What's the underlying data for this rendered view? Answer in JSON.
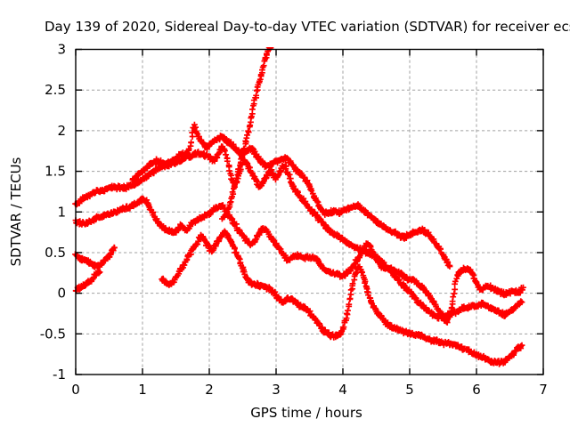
{
  "title": "Day 139 of 2020, Sidereal Day-to-day VTEC variation (SDTVAR) for receiver ecsd",
  "chart_data": {
    "type": "scatter",
    "title": "Day 139 of 2020, Sidereal Day-to-day VTEC variation (SDTVAR) for receiver ecsd",
    "xlabel": "GPS time / hours",
    "ylabel": "SDTVAR / TECUs",
    "xlim": [
      0,
      7
    ],
    "ylim": [
      -1,
      3
    ],
    "xtick_values": [
      0,
      1,
      2,
      3,
      4,
      5,
      6,
      7
    ],
    "xtick_labels": [
      "0",
      "1",
      "2",
      "3",
      "4",
      "5",
      "6",
      "7"
    ],
    "ytick_values": [
      -1,
      -0.5,
      0,
      0.5,
      1,
      1.5,
      2,
      2.5,
      3
    ],
    "ytick_labels": [
      "-1",
      "-0.5",
      "0",
      "0.5",
      "1",
      "1.5",
      "2",
      "2.5",
      "3"
    ],
    "grid": true,
    "legend": false,
    "marker": "plus",
    "marker_color": "#ff0000",
    "grid_color": "#a0a0a0",
    "axis_color": "#000000",
    "series": [
      {
        "points": [
          [
            0,
            1.1
          ],
          [
            0.12,
            1.17
          ],
          [
            0.25,
            1.23
          ],
          [
            0.4,
            1.27
          ],
          [
            0.55,
            1.3
          ],
          [
            0.7,
            1.3
          ],
          [
            0.85,
            1.33
          ],
          [
            1.0,
            1.4
          ],
          [
            1.1,
            1.46
          ],
          [
            1.2,
            1.52
          ],
          [
            1.35,
            1.57
          ],
          [
            1.5,
            1.61
          ],
          [
            1.6,
            1.64
          ],
          [
            1.68,
            1.72
          ],
          [
            1.73,
            1.88
          ],
          [
            1.77,
            2.05
          ],
          [
            1.82,
            1.95
          ],
          [
            1.88,
            1.86
          ],
          [
            1.95,
            1.8
          ],
          [
            2.03,
            1.84
          ],
          [
            2.1,
            1.88
          ],
          [
            2.18,
            1.92
          ],
          [
            2.25,
            1.88
          ],
          [
            2.33,
            1.83
          ],
          [
            2.4,
            1.77
          ],
          [
            2.48,
            1.71
          ],
          [
            2.56,
            1.75
          ],
          [
            2.63,
            1.78
          ],
          [
            2.7,
            1.7
          ],
          [
            2.78,
            1.62
          ],
          [
            2.85,
            1.56
          ],
          [
            2.92,
            1.58
          ],
          [
            3.0,
            1.62
          ],
          [
            3.08,
            1.64
          ],
          [
            3.16,
            1.66
          ],
          [
            3.22,
            1.6
          ],
          [
            3.3,
            1.52
          ],
          [
            3.4,
            1.44
          ],
          [
            3.5,
            1.32
          ],
          [
            3.58,
            1.18
          ],
          [
            3.65,
            1.06
          ],
          [
            3.7,
            1.0
          ],
          [
            3.78,
            0.99
          ],
          [
            3.87,
            1.01
          ],
          [
            3.95,
            1.0
          ],
          [
            4.05,
            1.03
          ],
          [
            4.15,
            1.06
          ],
          [
            4.24,
            1.07
          ],
          [
            4.33,
            1.0
          ],
          [
            4.42,
            0.94
          ],
          [
            4.51,
            0.87
          ],
          [
            4.64,
            0.8
          ],
          [
            4.77,
            0.74
          ],
          [
            4.91,
            0.69
          ],
          [
            5.0,
            0.72
          ],
          [
            5.08,
            0.75
          ],
          [
            5.17,
            0.77
          ],
          [
            5.27,
            0.73
          ],
          [
            5.37,
            0.63
          ],
          [
            5.47,
            0.52
          ],
          [
            5.55,
            0.4
          ],
          [
            5.6,
            0.33
          ]
        ]
      },
      {
        "points": [
          [
            0,
            0.88
          ],
          [
            0.12,
            0.86
          ],
          [
            0.25,
            0.9
          ],
          [
            0.4,
            0.95
          ],
          [
            0.55,
            0.99
          ],
          [
            0.7,
            1.03
          ],
          [
            0.85,
            1.08
          ],
          [
            0.97,
            1.14
          ],
          [
            1.03,
            1.15
          ],
          [
            1.12,
            1.03
          ],
          [
            1.22,
            0.88
          ],
          [
            1.32,
            0.8
          ],
          [
            1.42,
            0.77
          ],
          [
            1.5,
            0.76
          ],
          [
            1.58,
            0.83
          ],
          [
            1.66,
            0.78
          ],
          [
            1.74,
            0.86
          ],
          [
            1.83,
            0.91
          ],
          [
            1.93,
            0.95
          ],
          [
            2.03,
            1.0
          ],
          [
            2.12,
            1.05
          ],
          [
            2.19,
            1.07
          ],
          [
            2.28,
            0.97
          ],
          [
            2.38,
            0.85
          ],
          [
            2.48,
            0.73
          ],
          [
            2.57,
            0.64
          ],
          [
            2.64,
            0.61
          ],
          [
            2.72,
            0.7
          ],
          [
            2.8,
            0.79
          ],
          [
            2.86,
            0.76
          ],
          [
            2.94,
            0.66
          ],
          [
            3.03,
            0.57
          ],
          [
            3.11,
            0.47
          ],
          [
            3.18,
            0.41
          ],
          [
            3.28,
            0.46
          ],
          [
            3.4,
            0.45
          ],
          [
            3.52,
            0.44
          ],
          [
            3.62,
            0.42
          ],
          [
            3.7,
            0.31
          ],
          [
            3.8,
            0.26
          ],
          [
            3.9,
            0.24
          ],
          [
            4.0,
            0.22
          ],
          [
            4.1,
            0.28
          ],
          [
            4.22,
            0.42
          ],
          [
            4.32,
            0.55
          ],
          [
            4.38,
            0.61
          ],
          [
            4.45,
            0.5
          ],
          [
            4.53,
            0.38
          ],
          [
            4.62,
            0.31
          ],
          [
            4.72,
            0.3
          ],
          [
            4.82,
            0.26
          ],
          [
            4.92,
            0.2
          ],
          [
            5.02,
            0.17
          ],
          [
            5.12,
            0.12
          ],
          [
            5.22,
            0.05
          ],
          [
            5.32,
            -0.06
          ],
          [
            5.42,
            -0.2
          ],
          [
            5.5,
            -0.29
          ],
          [
            5.57,
            -0.34
          ],
          [
            5.64,
            -0.14
          ],
          [
            5.7,
            0.18
          ],
          [
            5.76,
            0.27
          ],
          [
            5.84,
            0.3
          ],
          [
            5.92,
            0.27
          ],
          [
            6.0,
            0.13
          ],
          [
            6.06,
            0.04
          ],
          [
            6.14,
            0.08
          ],
          [
            6.24,
            0.06
          ],
          [
            6.34,
            0.02
          ],
          [
            6.44,
            -0.01
          ],
          [
            6.54,
            0.03
          ],
          [
            6.63,
            0.01
          ],
          [
            6.7,
            0.07
          ]
        ]
      },
      {
        "points": [
          [
            0.85,
            1.38
          ],
          [
            0.95,
            1.47
          ],
          [
            1.05,
            1.54
          ],
          [
            1.15,
            1.6
          ],
          [
            1.25,
            1.63
          ],
          [
            1.33,
            1.6
          ],
          [
            1.42,
            1.62
          ],
          [
            1.52,
            1.67
          ],
          [
            1.62,
            1.71
          ],
          [
            1.72,
            1.69
          ],
          [
            1.82,
            1.73
          ],
          [
            1.9,
            1.71
          ],
          [
            2.0,
            1.68
          ],
          [
            2.08,
            1.64
          ],
          [
            2.15,
            1.74
          ],
          [
            2.2,
            1.8
          ],
          [
            2.27,
            1.65
          ],
          [
            2.33,
            1.42
          ],
          [
            2.39,
            1.35
          ],
          [
            2.46,
            1.5
          ],
          [
            2.53,
            1.63
          ],
          [
            2.6,
            1.54
          ],
          [
            2.67,
            1.43
          ],
          [
            2.74,
            1.31
          ],
          [
            2.8,
            1.36
          ],
          [
            2.86,
            1.44
          ],
          [
            2.92,
            1.5
          ],
          [
            2.99,
            1.42
          ],
          [
            3.05,
            1.48
          ],
          [
            3.11,
            1.57
          ],
          [
            3.17,
            1.49
          ],
          [
            3.24,
            1.34
          ],
          [
            3.3,
            1.25
          ],
          [
            3.4,
            1.15
          ],
          [
            3.5,
            1.04
          ],
          [
            3.6,
            0.96
          ],
          [
            3.7,
            0.86
          ],
          [
            3.8,
            0.77
          ],
          [
            3.9,
            0.71
          ],
          [
            4.0,
            0.67
          ],
          [
            4.1,
            0.61
          ],
          [
            4.2,
            0.56
          ],
          [
            4.3,
            0.52
          ],
          [
            4.4,
            0.49
          ],
          [
            4.5,
            0.44
          ],
          [
            4.6,
            0.37
          ],
          [
            4.7,
            0.29
          ],
          [
            4.8,
            0.19
          ],
          [
            4.9,
            0.1
          ],
          [
            5.0,
            0.02
          ],
          [
            5.1,
            -0.08
          ],
          [
            5.2,
            -0.16
          ],
          [
            5.3,
            -0.24
          ],
          [
            5.42,
            -0.29
          ],
          [
            5.55,
            -0.27
          ],
          [
            5.7,
            -0.22
          ],
          [
            5.85,
            -0.18
          ],
          [
            6.0,
            -0.15
          ],
          [
            6.1,
            -0.14
          ],
          [
            6.2,
            -0.18
          ],
          [
            6.32,
            -0.22
          ],
          [
            6.42,
            -0.26
          ],
          [
            6.52,
            -0.21
          ],
          [
            6.6,
            -0.16
          ],
          [
            6.68,
            -0.11
          ]
        ]
      },
      {
        "points": [
          [
            1.29,
            0.17
          ],
          [
            1.36,
            0.13
          ],
          [
            1.43,
            0.12
          ],
          [
            1.52,
            0.22
          ],
          [
            1.62,
            0.36
          ],
          [
            1.72,
            0.5
          ],
          [
            1.8,
            0.6
          ],
          [
            1.88,
            0.7
          ],
          [
            1.96,
            0.61
          ],
          [
            2.03,
            0.52
          ],
          [
            2.1,
            0.6
          ],
          [
            2.18,
            0.7
          ],
          [
            2.24,
            0.74
          ],
          [
            2.31,
            0.64
          ],
          [
            2.4,
            0.51
          ],
          [
            2.48,
            0.34
          ],
          [
            2.56,
            0.18
          ],
          [
            2.64,
            0.12
          ],
          [
            2.74,
            0.1
          ],
          [
            2.84,
            0.08
          ],
          [
            2.94,
            0.03
          ],
          [
            3.03,
            -0.06
          ],
          [
            3.1,
            -0.1
          ],
          [
            3.18,
            -0.06
          ],
          [
            3.28,
            -0.11
          ],
          [
            3.38,
            -0.16
          ],
          [
            3.46,
            -0.2
          ],
          [
            3.56,
            -0.3
          ],
          [
            3.64,
            -0.38
          ],
          [
            3.72,
            -0.47
          ],
          [
            3.8,
            -0.51
          ],
          [
            3.9,
            -0.52
          ],
          [
            3.98,
            -0.48
          ],
          [
            4.05,
            -0.3
          ],
          [
            4.12,
            -0.02
          ],
          [
            4.18,
            0.22
          ],
          [
            4.24,
            0.33
          ],
          [
            4.3,
            0.22
          ],
          [
            4.36,
            0.05
          ],
          [
            4.42,
            -0.1
          ],
          [
            4.5,
            -0.22
          ],
          [
            4.6,
            -0.32
          ],
          [
            4.7,
            -0.4
          ],
          [
            4.8,
            -0.44
          ],
          [
            4.91,
            -0.47
          ],
          [
            5.03,
            -0.5
          ],
          [
            5.15,
            -0.52
          ],
          [
            5.28,
            -0.56
          ],
          [
            5.38,
            -0.59
          ],
          [
            5.5,
            -0.61
          ],
          [
            5.62,
            -0.63
          ],
          [
            5.74,
            -0.66
          ],
          [
            5.86,
            -0.7
          ],
          [
            5.98,
            -0.75
          ],
          [
            6.1,
            -0.79
          ],
          [
            6.22,
            -0.83
          ],
          [
            6.33,
            -0.85
          ],
          [
            6.42,
            -0.84
          ],
          [
            6.52,
            -0.77
          ],
          [
            6.62,
            -0.68
          ],
          [
            6.68,
            -0.64
          ]
        ]
      },
      {
        "points": [
          [
            0,
            0.46
          ],
          [
            0.08,
            0.43
          ],
          [
            0.16,
            0.4
          ],
          [
            0.24,
            0.36
          ],
          [
            0.31,
            0.33
          ],
          [
            0.38,
            0.36
          ],
          [
            0.45,
            0.42
          ],
          [
            0.52,
            0.48
          ],
          [
            0.58,
            0.56
          ]
        ]
      },
      {
        "points": [
          [
            0,
            0.03
          ],
          [
            0.07,
            0.07
          ],
          [
            0.14,
            0.11
          ],
          [
            0.22,
            0.15
          ],
          [
            0.3,
            0.22
          ],
          [
            0.36,
            0.26
          ]
        ]
      },
      {
        "points": [
          [
            2.2,
            0.93
          ],
          [
            2.27,
            1.0
          ],
          [
            2.33,
            1.16
          ],
          [
            2.4,
            1.4
          ],
          [
            2.47,
            1.62
          ],
          [
            2.53,
            1.8
          ],
          [
            2.59,
            2.0
          ],
          [
            2.66,
            2.3
          ],
          [
            2.72,
            2.5
          ],
          [
            2.78,
            2.7
          ],
          [
            2.83,
            2.86
          ],
          [
            2.88,
            3.0
          ],
          [
            2.92,
            3.02
          ]
        ]
      }
    ]
  }
}
